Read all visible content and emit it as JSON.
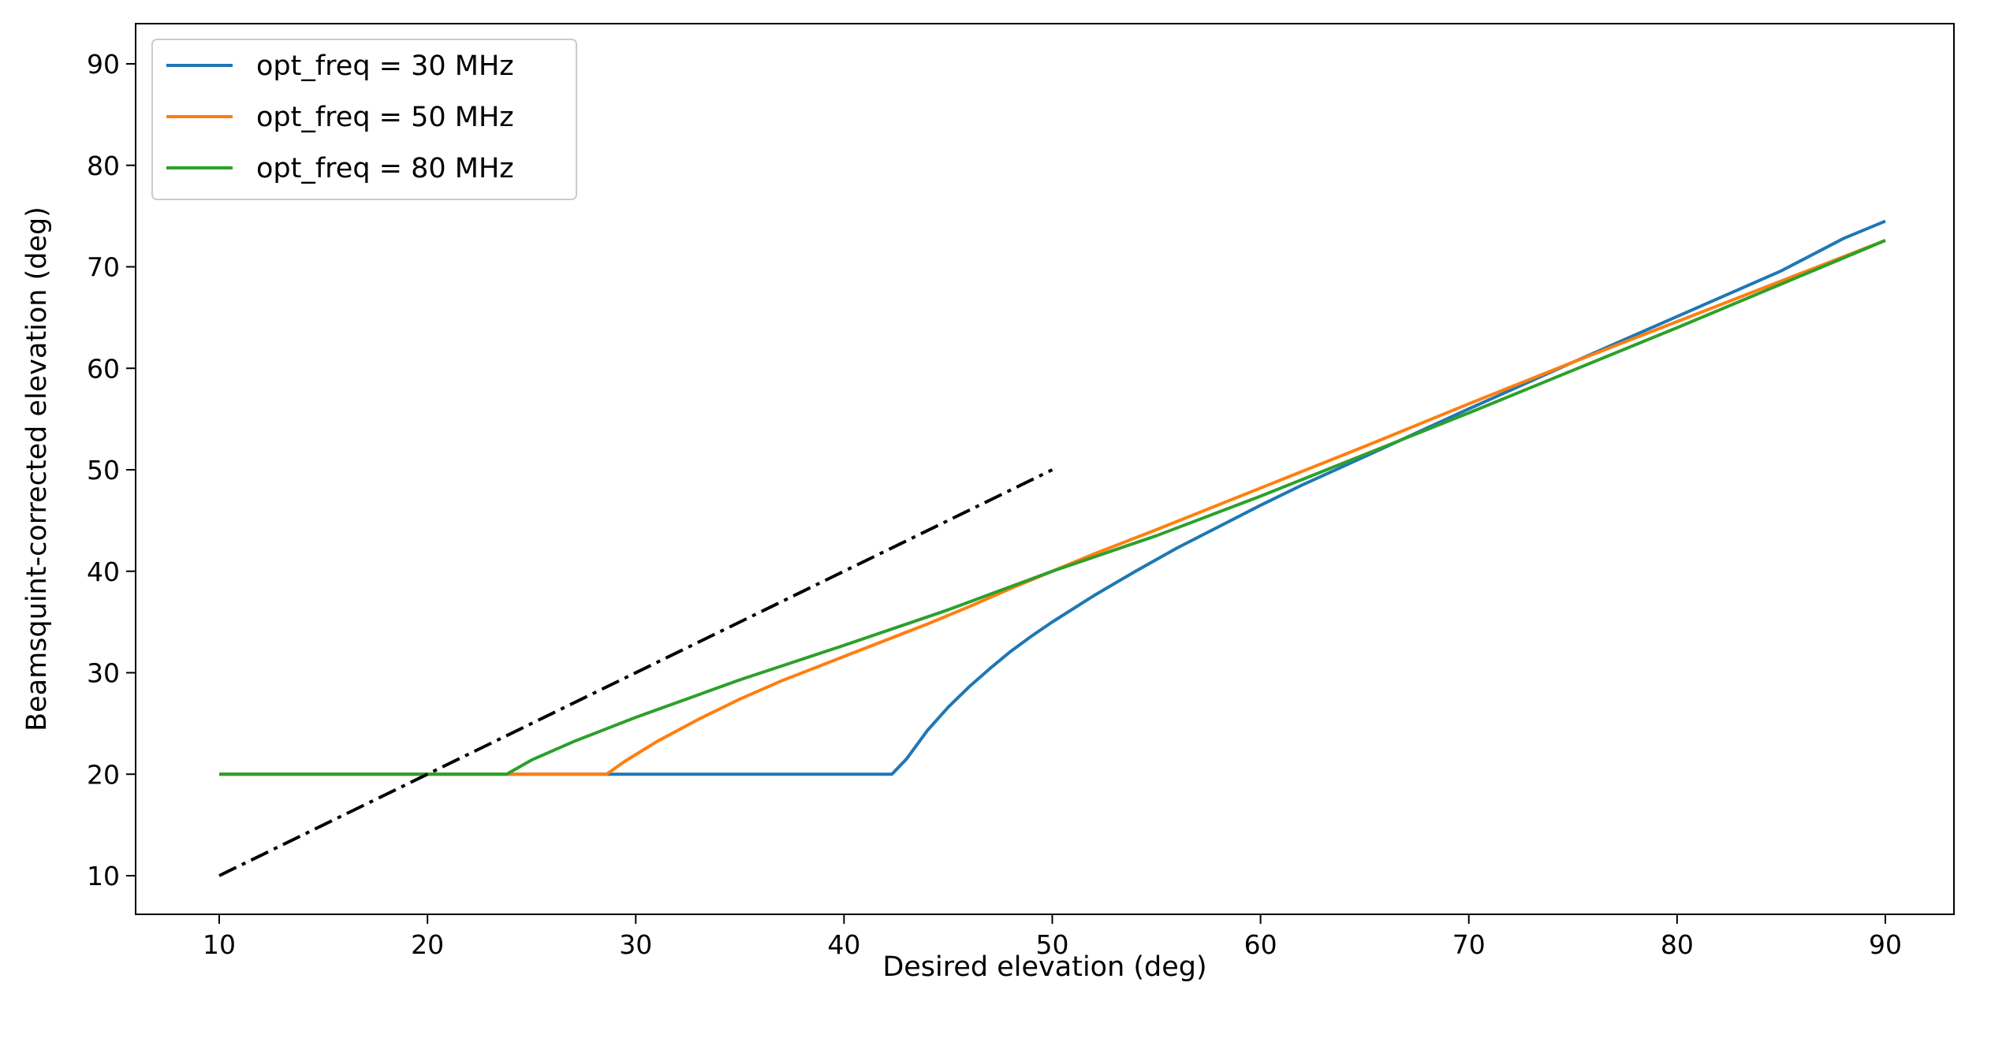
{
  "chart_data": {
    "type": "line",
    "xlabel": "Desired elevation (deg)",
    "ylabel": "Beamsquint-corrected elevation (deg)",
    "xlim": [
      6,
      94
    ],
    "ylim": [
      6,
      94
    ],
    "xticks": [
      10,
      20,
      30,
      40,
      50,
      60,
      70,
      80,
      90
    ],
    "yticks": [
      10,
      20,
      30,
      40,
      50,
      60,
      70,
      80,
      90
    ],
    "grid": false,
    "legend_position": "top-left",
    "series": [
      {
        "name": "opt_freq = 30 MHz",
        "color": "#1f77b4",
        "x": [
          10,
          20,
          30,
          40,
          42.3,
          43,
          44,
          45,
          46,
          47,
          48,
          49,
          50,
          52,
          54,
          56,
          58,
          60,
          62,
          65,
          70,
          75,
          80,
          85,
          88,
          90
        ],
        "y": [
          20,
          20,
          20,
          20,
          20,
          21.5,
          24.3,
          26.6,
          28.6,
          30.4,
          32.1,
          33.6,
          35.0,
          37.6,
          40.0,
          42.3,
          44.4,
          46.5,
          48.5,
          51.3,
          56.0,
          60.6,
          65.1,
          69.6,
          72.8,
          74.5
        ]
      },
      {
        "name": "opt_freq = 50 MHz",
        "color": "#ff7f0e",
        "x": [
          10,
          20,
          24,
          28.6,
          29.5,
          31,
          33,
          35,
          37,
          40,
          44,
          46,
          48,
          50,
          52,
          55,
          60,
          65,
          70,
          75,
          80,
          85,
          90
        ],
        "y": [
          20,
          20,
          20,
          20,
          21.3,
          23.2,
          25.4,
          27.4,
          29.2,
          31.6,
          34.8,
          36.5,
          38.3,
          40.0,
          41.7,
          44.1,
          48.2,
          52.3,
          56.5,
          60.6,
          64.6,
          68.6,
          72.6
        ]
      },
      {
        "name": "opt_freq = 80 MHz",
        "color": "#2ca02c",
        "x": [
          10,
          20,
          23.8,
          25,
          27,
          30,
          35,
          40,
          45,
          50,
          55,
          60,
          65,
          70,
          75,
          80,
          85,
          90
        ],
        "y": [
          20,
          20,
          20,
          21.4,
          23.2,
          25.6,
          29.3,
          32.7,
          36.2,
          40.0,
          43.5,
          47.4,
          51.5,
          55.6,
          59.8,
          64.0,
          68.3,
          72.6
        ]
      }
    ],
    "reference_line": {
      "style": "dash-dot",
      "color": "#000000",
      "x": [
        10,
        50
      ],
      "y": [
        10,
        50
      ]
    }
  }
}
